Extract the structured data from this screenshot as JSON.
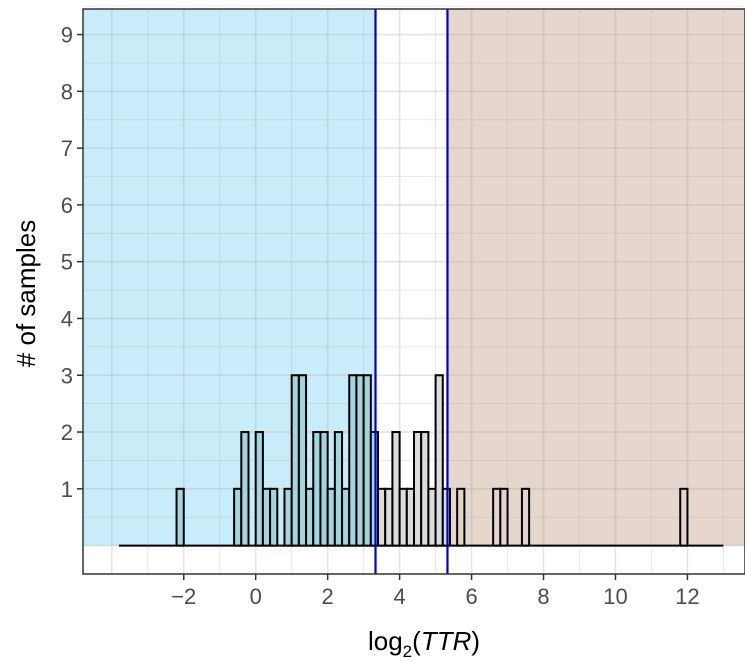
{
  "chart_data": {
    "type": "bar",
    "subtype": "histogram",
    "xlabel": {
      "text": "log",
      "subscript": "2",
      "paren_open": "(",
      "italic": "TTR",
      "paren_close": ")"
    },
    "ylabel": "# of samples",
    "xlim": [
      -4.8,
      13.6
    ],
    "ylim": [
      -0.5,
      9.45
    ],
    "x_ticks": [
      -2,
      0,
      2,
      4,
      6,
      8,
      10,
      12
    ],
    "x_tick_labels": [
      "−2",
      "0",
      "2",
      "4",
      "6",
      "8",
      "10",
      "12"
    ],
    "y_ticks": [
      1,
      2,
      3,
      4,
      5,
      6,
      7,
      8,
      9
    ],
    "y_tick_labels": [
      "1",
      "2",
      "3",
      "4",
      "5",
      "6",
      "7",
      "8",
      "9"
    ],
    "bin_width": 0.2,
    "baseline_range": [
      -3.8,
      13.0
    ],
    "bins": [
      {
        "x": -2.1,
        "count": 1
      },
      {
        "x": -0.5,
        "count": 1
      },
      {
        "x": -0.3,
        "count": 2
      },
      {
        "x": 0.1,
        "count": 2
      },
      {
        "x": 0.3,
        "count": 1
      },
      {
        "x": 0.5,
        "count": 1
      },
      {
        "x": 0.9,
        "count": 1
      },
      {
        "x": 1.1,
        "count": 3
      },
      {
        "x": 1.3,
        "count": 3
      },
      {
        "x": 1.5,
        "count": 1
      },
      {
        "x": 1.7,
        "count": 2
      },
      {
        "x": 1.9,
        "count": 2
      },
      {
        "x": 2.1,
        "count": 1
      },
      {
        "x": 2.3,
        "count": 2
      },
      {
        "x": 2.5,
        "count": 1
      },
      {
        "x": 2.7,
        "count": 3
      },
      {
        "x": 2.9,
        "count": 3
      },
      {
        "x": 3.1,
        "count": 3
      },
      {
        "x": 3.3,
        "count": 2
      },
      {
        "x": 3.5,
        "count": 1
      },
      {
        "x": 3.7,
        "count": 1
      },
      {
        "x": 3.9,
        "count": 2
      },
      {
        "x": 4.1,
        "count": 1
      },
      {
        "x": 4.3,
        "count": 1
      },
      {
        "x": 4.5,
        "count": 2
      },
      {
        "x": 4.7,
        "count": 2
      },
      {
        "x": 4.9,
        "count": 1
      },
      {
        "x": 5.1,
        "count": 3
      },
      {
        "x": 5.3,
        "count": 1
      },
      {
        "x": 5.7,
        "count": 1
      },
      {
        "x": 6.7,
        "count": 1
      },
      {
        "x": 6.9,
        "count": 1
      },
      {
        "x": 7.5,
        "count": 1
      },
      {
        "x": 11.9,
        "count": 1
      }
    ],
    "vertical_lines": [
      3.33,
      5.33
    ],
    "regions": [
      {
        "from": -4.8,
        "to": 3.33,
        "color": "#c9ecfa"
      },
      {
        "from": 5.33,
        "to": 13.6,
        "color": "#e5d6ce"
      }
    ],
    "bar_fill_left": "#a4d5df",
    "bar_fill_middle": "#dcdcdc",
    "bar_fill_right": "#e2d4cc",
    "bar_stroke": "#000000",
    "vline_color": "#0000cc",
    "grid": true,
    "legend": "none"
  }
}
